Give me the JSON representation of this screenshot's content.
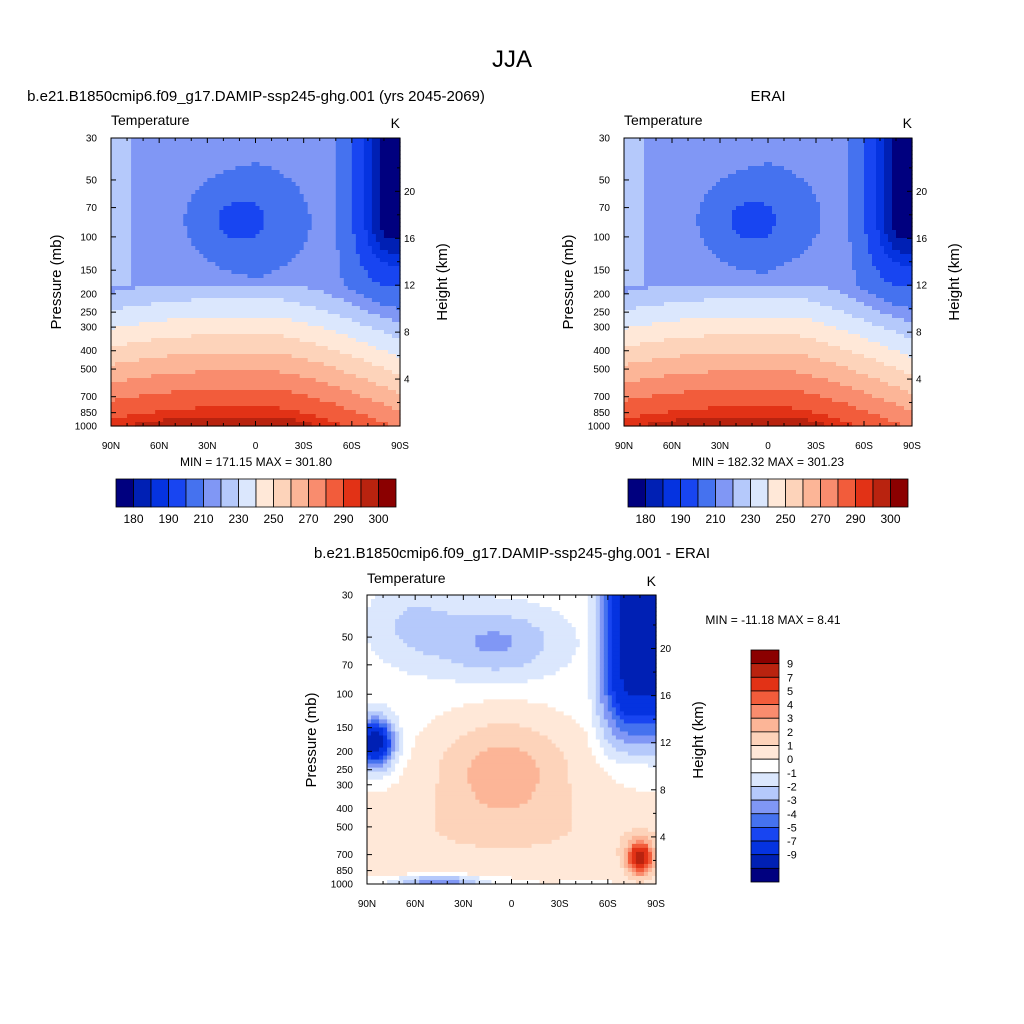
{
  "figure": {
    "title": "JJA"
  },
  "colors": {
    "abs_palette": [
      "#00007f",
      "#0020b4",
      "#0533e0",
      "#1845f1",
      "#4572ef",
      "#8097f5",
      "#b5c9fb",
      "#dbe7fd",
      "#ffe8d8",
      "#fdd3ba",
      "#fcb597",
      "#f98c6e",
      "#f25c3b",
      "#e23216",
      "#b9230f",
      "#8b0000"
    ],
    "diff_palette": [
      "#00007f",
      "#0020b4",
      "#0533e0",
      "#1845f1",
      "#4572ef",
      "#8097f5",
      "#b5c9fb",
      "#dbe7fd",
      "#ffffff",
      "#ffe8d8",
      "#fdd3ba",
      "#fcb597",
      "#f98c6e",
      "#f25c3b",
      "#e23216",
      "#b9230f",
      "#8b0000"
    ]
  },
  "chart_data": [
    {
      "id": "model",
      "type": "heatmap",
      "title": "b.e21.B1850cmip6.f09_g17.DAMIP-ssp245-ghg.001 (yrs 2045-2069)",
      "variable": "Temperature",
      "units": "K",
      "xlabel": "",
      "ylabel": "Pressure (mb)",
      "y2label": "Height (km)",
      "x_ticks": [
        "90N",
        "60N",
        "30N",
        "0",
        "30S",
        "60S",
        "90S"
      ],
      "x_range": [
        90,
        -90
      ],
      "y_ticks": [
        30,
        50,
        70,
        100,
        150,
        200,
        250,
        300,
        400,
        500,
        700,
        850,
        1000
      ],
      "y_range": [
        1000,
        30
      ],
      "y_scale": "log",
      "y2_ticks": [
        4,
        8,
        12,
        16,
        20
      ],
      "stats": "MIN = 171.15  MAX = 301.80",
      "min": 171.15,
      "max": 301.8,
      "colorbar": {
        "orientation": "horizontal",
        "labels": [
          "180",
          "190",
          "210",
          "230",
          "250",
          "270",
          "290",
          "300"
        ]
      }
    },
    {
      "id": "obs",
      "type": "heatmap",
      "title": "ERAI",
      "variable": "Temperature",
      "units": "K",
      "xlabel": "",
      "ylabel": "Pressure (mb)",
      "y2label": "Height (km)",
      "x_ticks": [
        "90N",
        "60N",
        "30N",
        "0",
        "30S",
        "60S",
        "90S"
      ],
      "x_range": [
        90,
        -90
      ],
      "y_ticks": [
        30,
        50,
        70,
        100,
        150,
        200,
        250,
        300,
        400,
        500,
        700,
        850,
        1000
      ],
      "y_range": [
        1000,
        30
      ],
      "y_scale": "log",
      "y2_ticks": [
        4,
        8,
        12,
        16,
        20
      ],
      "stats": "MIN = 182.32  MAX = 301.23",
      "min": 182.32,
      "max": 301.23,
      "colorbar": {
        "orientation": "horizontal",
        "labels": [
          "180",
          "190",
          "210",
          "230",
          "250",
          "270",
          "290",
          "300"
        ]
      }
    },
    {
      "id": "diff",
      "type": "heatmap",
      "title": "b.e21.B1850cmip6.f09_g17.DAMIP-ssp245-ghg.001 - ERAI",
      "variable": "Temperature",
      "units": "K",
      "xlabel": "",
      "ylabel": "Pressure (mb)",
      "y2label": "Height (km)",
      "x_ticks": [
        "90N",
        "60N",
        "30N",
        "0",
        "30S",
        "60S",
        "90S"
      ],
      "x_range": [
        90,
        -90
      ],
      "y_ticks": [
        30,
        50,
        70,
        100,
        150,
        200,
        250,
        300,
        400,
        500,
        700,
        850,
        1000
      ],
      "y_range": [
        1000,
        30
      ],
      "y_scale": "log",
      "y2_ticks": [
        4,
        8,
        12,
        16,
        20
      ],
      "stats": "MIN = -11.18  MAX =   8.41",
      "min": -11.18,
      "max": 8.41,
      "colorbar": {
        "orientation": "vertical",
        "labels": [
          "9",
          "7",
          "5",
          "4",
          "3",
          "2",
          "1",
          "0",
          "-1",
          "-2",
          "-3",
          "-4",
          "-5",
          "-7",
          "-9"
        ]
      }
    }
  ]
}
